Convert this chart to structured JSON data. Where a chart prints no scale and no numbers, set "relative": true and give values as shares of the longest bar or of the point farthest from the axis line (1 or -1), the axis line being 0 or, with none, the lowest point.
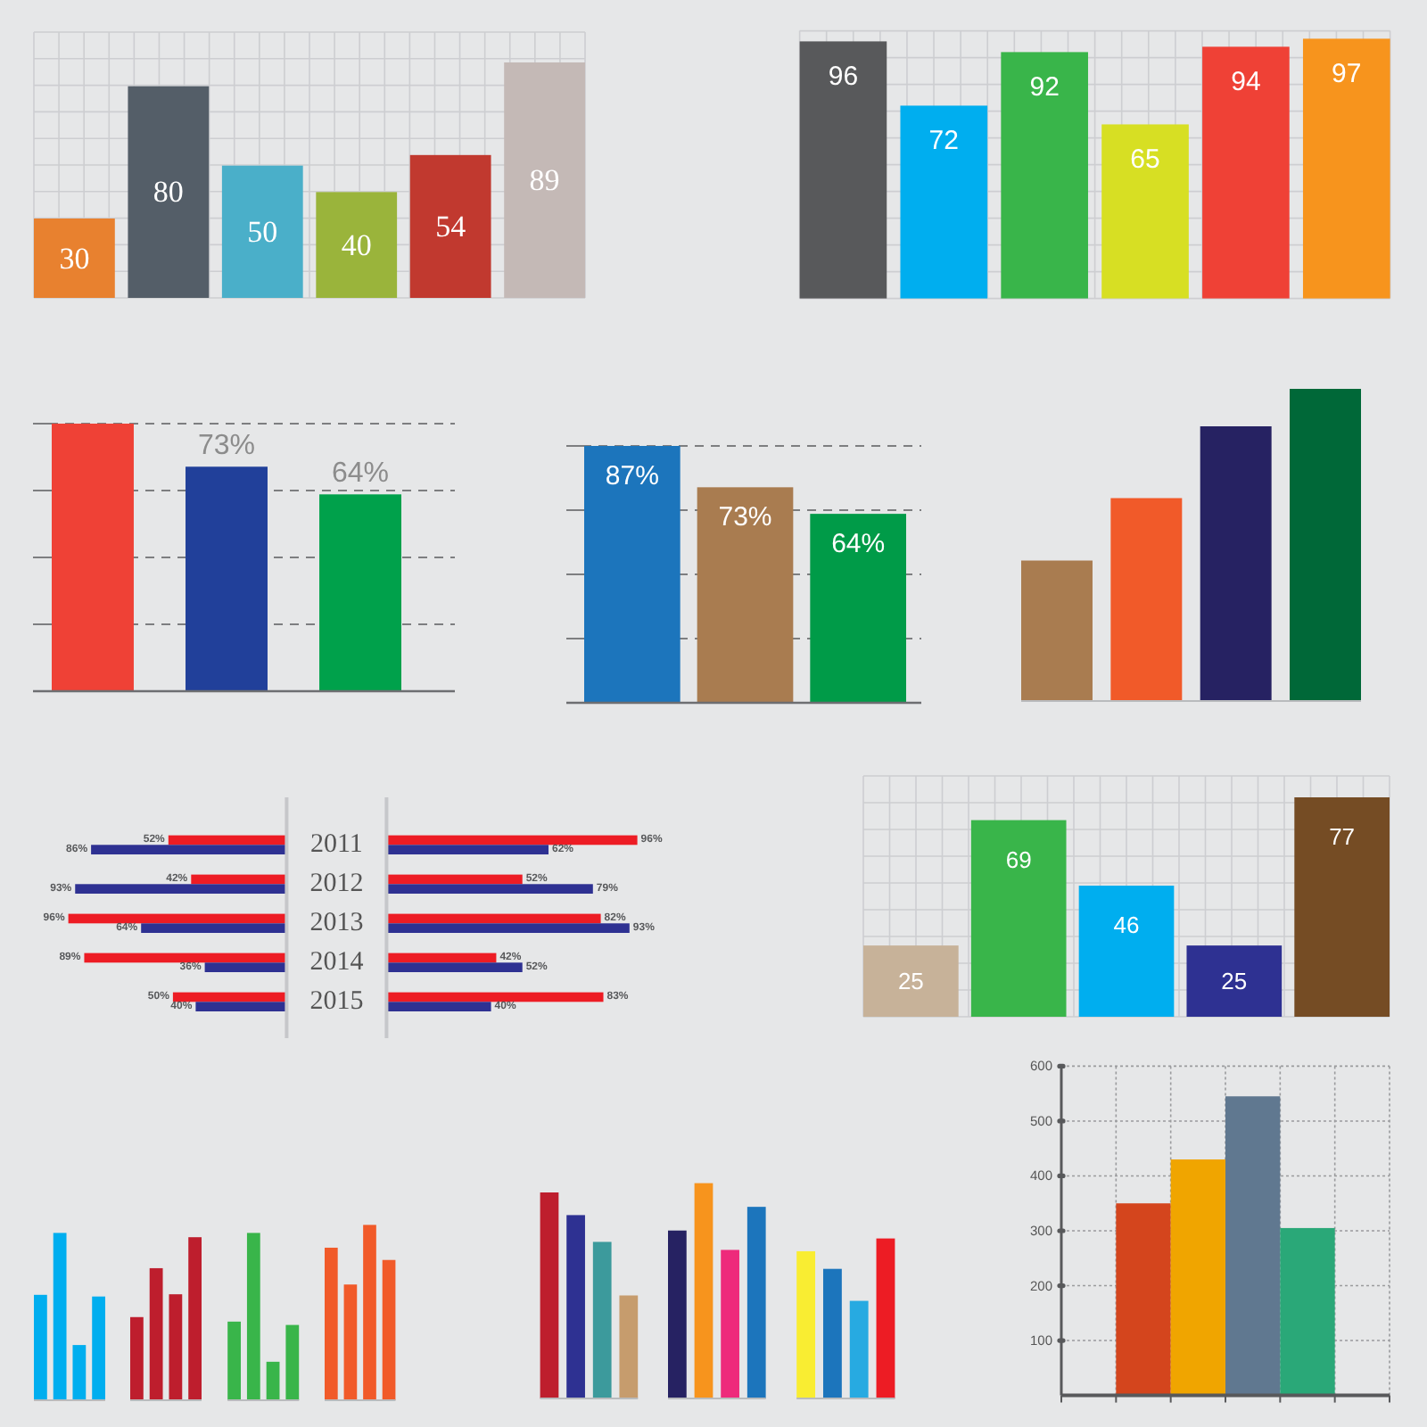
{
  "chart_data": [
    {
      "type": "bar",
      "categories": [
        null,
        null,
        null,
        null,
        null,
        null
      ],
      "values": [
        30,
        80,
        50,
        40,
        54,
        89
      ],
      "colors": [
        "#e8812f",
        "#545e68",
        "#4aafc9",
        "#9ab43b",
        "#c1392f",
        "#c4b9b6"
      ],
      "data_labels": true,
      "grid": true
    },
    {
      "type": "bar",
      "categories": [
        null,
        null,
        null,
        null,
        null,
        null
      ],
      "values": [
        96,
        72,
        92,
        65,
        94,
        97
      ],
      "colors": [
        "#58595b",
        "#00aeef",
        "#39b54a",
        "#d7df23",
        "#ef4136",
        "#f7941d"
      ],
      "data_labels": true,
      "grid": true
    },
    {
      "type": "bar",
      "categories": [
        null,
        null,
        null
      ],
      "values": [
        87,
        73,
        64
      ],
      "value_labels": [
        null,
        "73%",
        "64%"
      ],
      "colors": [
        "#ef4136",
        "#21409a",
        "#00a14b"
      ],
      "grid": "y"
    },
    {
      "type": "bar",
      "categories": [
        null,
        null,
        null
      ],
      "values": [
        87,
        73,
        64
      ],
      "value_labels": [
        "87%",
        "73%",
        "64%"
      ],
      "colors": [
        "#1c75bc",
        "#a97c50",
        "#009b48"
      ],
      "grid": "y"
    },
    {
      "type": "bar",
      "categories": [
        null,
        null,
        null,
        null
      ],
      "values": [
        0.45,
        0.65,
        0.88,
        1
      ],
      "colors": [
        "#a97c50",
        "#f15a29",
        "#262262",
        "#006838"
      ],
      "relative": true
    },
    {
      "type": "bar",
      "orientation": "horizontal",
      "categories": [
        "2011",
        "2012",
        "2013",
        "2014",
        "2015"
      ],
      "xlim": [
        96,
        0
      ],
      "series": [
        {
          "color": "#ed1c24",
          "values": [
            52,
            42,
            96,
            89,
            50
          ],
          "value_labels": [
            "52%",
            "42%",
            "96%",
            "89%",
            "50%"
          ]
        },
        {
          "color": "#2e3192",
          "values": [
            86,
            93,
            64,
            36,
            40
          ],
          "value_labels": [
            "86%",
            "93%",
            "64%",
            "36%",
            "40%"
          ]
        }
      ]
    },
    {
      "type": "bar",
      "orientation": "horizontal",
      "categories": [
        null,
        null,
        null,
        null,
        null
      ],
      "series": [
        {
          "color": "#ed1c24",
          "values": [
            96,
            52,
            82,
            42,
            83
          ],
          "value_labels": [
            "96%",
            "52%",
            "82%",
            "42%",
            "83%"
          ]
        },
        {
          "color": "#2e3192",
          "values": [
            62,
            79,
            93,
            52,
            40
          ],
          "value_labels": [
            "62%",
            "79%",
            "93%",
            "52%",
            "40%"
          ]
        }
      ]
    },
    {
      "type": "bar",
      "categories": [
        null,
        null,
        null,
        null,
        null
      ],
      "values": [
        25,
        69,
        46,
        25,
        77
      ],
      "colors": [
        "#c7b299",
        "#39b54a",
        "#00aeef",
        "#2e3192",
        "#754c24"
      ],
      "data_labels": true,
      "grid": true
    },
    {
      "type": "bar",
      "categories": [
        null,
        null,
        null,
        null
      ],
      "values": [
        0.63,
        1,
        0.33,
        0.62
      ],
      "color": "#00aeef",
      "relative": true
    },
    {
      "type": "bar",
      "categories": [
        null,
        null,
        null,
        null
      ],
      "values": [
        0.51,
        0.81,
        0.65,
        1
      ],
      "color": "#be1e2d",
      "relative": true
    },
    {
      "type": "bar",
      "categories": [
        null,
        null,
        null,
        null
      ],
      "values": [
        0.47,
        1,
        0.23,
        0.45
      ],
      "color": "#39b54a",
      "relative": true
    },
    {
      "type": "bar",
      "categories": [
        null,
        null,
        null,
        null
      ],
      "values": [
        0.87,
        0.66,
        1,
        0.8
      ],
      "color": "#f15a29",
      "relative": true
    },
    {
      "type": "bar",
      "categories": [
        null,
        null,
        null,
        null
      ],
      "values": [
        1,
        0.89,
        0.76,
        0.5
      ],
      "colors": [
        "#be1e2d",
        "#2e3192",
        "#3c9a9c",
        "#c69c6d"
      ],
      "relative": true
    },
    {
      "type": "bar",
      "categories": [
        null,
        null,
        null,
        null
      ],
      "values": [
        0.78,
        1,
        0.69,
        0.89
      ],
      "colors": [
        "#262262",
        "#f7941d",
        "#ee2a7b",
        "#1c75bc"
      ],
      "relative": true
    },
    {
      "type": "bar",
      "categories": [
        null,
        null,
        null,
        null
      ],
      "values": [
        0.92,
        0.81,
        0.61,
        1
      ],
      "colors": [
        "#f9ed32",
        "#1c75bc",
        "#27aae1",
        "#ed1c24"
      ],
      "relative": true
    },
    {
      "type": "bar",
      "categories": [
        null,
        null,
        null,
        null,
        null,
        null
      ],
      "values": [
        null,
        350,
        430,
        545,
        305,
        null
      ],
      "colors": [
        null,
        "#d4451d",
        "#f0a500",
        "#607890",
        "#2aa878",
        null
      ],
      "ylim": [
        0,
        600
      ],
      "yticks": [
        100,
        200,
        300,
        400,
        500,
        600
      ],
      "grid": true,
      "tick_labels": "y"
    }
  ]
}
